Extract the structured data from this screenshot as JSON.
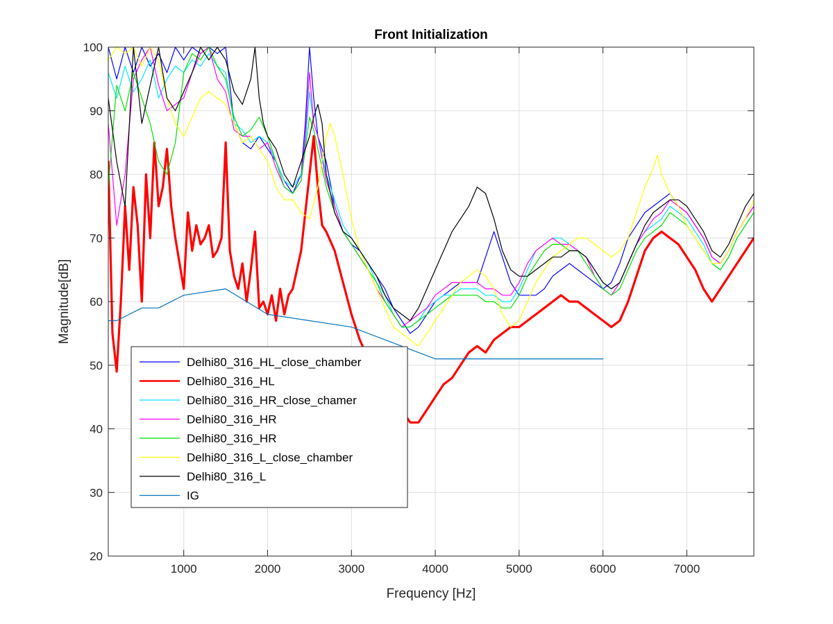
{
  "chart_data": {
    "type": "line",
    "title": "Front Initialization",
    "xlabel": "Frequency [Hz]",
    "ylabel": "Magnitude[dB]",
    "xlim": [
      100,
      7800
    ],
    "ylim": [
      20,
      100
    ],
    "xticks": [
      1000,
      2000,
      3000,
      4000,
      5000,
      6000,
      7000
    ],
    "yticks": [
      20,
      30,
      40,
      50,
      60,
      70,
      80,
      90,
      100
    ],
    "grid": true,
    "legend_position": "lower-left",
    "series": [
      {
        "name": "Delhi80_316_HL_close_chamber",
        "color": "#0000ff",
        "width": 1.2,
        "x": [
          100,
          200,
          300,
          400,
          500,
          600,
          700,
          800,
          900,
          1000,
          1100,
          1200,
          1300,
          1400,
          1500,
          1600,
          1700,
          1800,
          1900,
          2000,
          2100,
          2200,
          2300,
          2400,
          2450,
          2500,
          2550,
          2600,
          2700,
          2800,
          2900,
          3000,
          3100,
          3200,
          3300,
          3400,
          3500,
          3600,
          3700,
          3800,
          3900,
          4000,
          4100,
          4200,
          4300,
          4400,
          4500,
          4600,
          4700,
          4800,
          4900,
          5000,
          5100,
          5200,
          5300,
          5400,
          5500,
          5600,
          5700,
          5800,
          5900,
          6000,
          6100,
          6200,
          6300,
          6400,
          6500,
          6600,
          6700,
          6800,
          6900,
          7000,
          7100,
          7200,
          7300,
          7400,
          7500,
          7600,
          7700,
          7800
        ],
        "y": [
          100,
          95,
          100,
          96,
          100,
          97,
          99,
          96,
          100,
          98,
          100,
          99,
          100,
          99,
          100,
          88,
          85,
          84,
          86,
          84,
          82,
          79,
          77,
          80,
          88,
          100,
          92,
          86,
          82,
          75,
          71,
          69,
          68,
          66,
          64,
          62,
          59,
          57,
          55,
          56,
          58,
          60,
          61,
          62,
          63,
          63,
          63,
          67,
          71,
          67,
          63,
          61,
          61,
          61,
          62,
          64,
          65,
          66,
          65,
          64,
          63,
          62,
          63,
          66,
          70,
          72,
          74,
          75,
          76,
          77,
          75,
          74,
          72,
          70,
          67,
          66,
          68,
          71,
          73,
          75
        ]
      },
      {
        "name": "Delhi80_316_HL",
        "color": "#ff0000",
        "width": 3.2,
        "x": [
          100,
          150,
          200,
          250,
          300,
          350,
          400,
          450,
          500,
          550,
          600,
          650,
          700,
          750,
          800,
          850,
          900,
          950,
          1000,
          1050,
          1100,
          1150,
          1200,
          1250,
          1300,
          1350,
          1400,
          1450,
          1500,
          1550,
          1600,
          1650,
          1700,
          1750,
          1800,
          1850,
          1900,
          1950,
          2000,
          2050,
          2100,
          2150,
          2200,
          2250,
          2300,
          2400,
          2500,
          2550,
          2600,
          2650,
          2700,
          2800,
          2900,
          3000,
          3100,
          3200,
          3300,
          3400,
          3500,
          3600,
          3700,
          3800,
          3900,
          4000,
          4100,
          4200,
          4300,
          4400,
          4500,
          4600,
          4700,
          4800,
          4900,
          5000,
          5100,
          5200,
          5300,
          5400,
          5500,
          5600,
          5700,
          5800,
          5900,
          6000,
          6100,
          6200,
          6300,
          6400,
          6500,
          6600,
          6700,
          6800,
          6900,
          7000,
          7100,
          7200,
          7300,
          7400,
          7500,
          7600,
          7700,
          7800
        ],
        "y": [
          82,
          55,
          49,
          60,
          75,
          65,
          78,
          72,
          60,
          80,
          70,
          85,
          75,
          78,
          84,
          75,
          70,
          66,
          62,
          74,
          68,
          72,
          69,
          70,
          72,
          67,
          68,
          70,
          85,
          68,
          64,
          62,
          66,
          60,
          65,
          71,
          59,
          60,
          58,
          61,
          57,
          62,
          58,
          61,
          62,
          68,
          80,
          86,
          78,
          72,
          71,
          68,
          63,
          58,
          54,
          51,
          48,
          46,
          44,
          43,
          41,
          41,
          43,
          45,
          47,
          48,
          50,
          52,
          53,
          52,
          54,
          55,
          56,
          56,
          57,
          58,
          59,
          60,
          61,
          60,
          60,
          59,
          58,
          57,
          56,
          57,
          60,
          64,
          68,
          70,
          71,
          70,
          69,
          67,
          65,
          62,
          60,
          62,
          64,
          66,
          68,
          70
        ]
      },
      {
        "name": "Delhi80_316_HR_close_chamer",
        "color": "#00e5ff",
        "width": 1.2,
        "x": [
          100,
          200,
          300,
          400,
          500,
          600,
          700,
          800,
          900,
          1000,
          1100,
          1200,
          1300,
          1400,
          1500,
          1600,
          1700,
          1800,
          1900,
          2000,
          2100,
          2200,
          2300,
          2400,
          2450,
          2500,
          2550,
          2600,
          2700,
          2800,
          2900,
          3000,
          3100,
          3200,
          3300,
          3400,
          3500,
          3600,
          3700,
          3800,
          3900,
          4000,
          4100,
          4200,
          4300,
          4400,
          4500,
          4600,
          4700,
          4800,
          4900,
          5000,
          5100,
          5200,
          5300,
          5400,
          5500,
          5600,
          5700,
          5800,
          5900,
          6000,
          6100,
          6200,
          6300,
          6400,
          6500,
          6600,
          6700,
          6800,
          6900,
          7000,
          7100,
          7200,
          7300,
          7400,
          7500,
          7600,
          7700,
          7800
        ],
        "y": [
          96,
          92,
          97,
          93,
          95,
          98,
          92,
          95,
          97,
          96,
          98,
          97,
          99,
          97,
          96,
          88,
          87,
          85,
          86,
          85,
          82,
          79,
          78,
          80,
          85,
          93,
          88,
          86,
          80,
          76,
          72,
          70,
          68,
          66,
          63,
          61,
          58,
          56,
          56,
          57,
          59,
          60,
          61,
          61,
          62,
          62,
          62,
          61,
          61,
          60,
          60,
          62,
          65,
          68,
          69,
          70,
          70,
          69,
          68,
          67,
          65,
          63,
          62,
          63,
          66,
          69,
          71,
          72,
          73,
          75,
          74,
          73,
          71,
          69,
          66,
          65,
          67,
          70,
          72,
          74
        ]
      },
      {
        "name": "Delhi80_316_HR",
        "color": "#ff00ff",
        "width": 1.2,
        "x": [
          100,
          200,
          300,
          400,
          500,
          600,
          700,
          800,
          900,
          1000,
          1100,
          1200,
          1300,
          1400,
          1500,
          1600,
          1700,
          1800,
          1900,
          2000,
          2100,
          2200,
          2300,
          2400,
          2450,
          2500,
          2550,
          2600,
          2700,
          2800,
          2900,
          3000,
          3100,
          3200,
          3300,
          3400,
          3500,
          3600,
          3700,
          3800,
          3900,
          4000,
          4100,
          4200,
          4300,
          4400,
          4500,
          4600,
          4700,
          4800,
          4900,
          5000,
          5100,
          5200,
          5300,
          5400,
          5500,
          5600,
          5700,
          5800,
          5900,
          6000,
          6100,
          6200,
          6300,
          6400,
          6500,
          6600,
          6700,
          6800,
          6900,
          7000,
          7100,
          7200,
          7300,
          7400,
          7500,
          7600,
          7700,
          7800
        ],
        "y": [
          88,
          72,
          80,
          95,
          98,
          100,
          94,
          90,
          91,
          92,
          96,
          99,
          100,
          95,
          93,
          87,
          86,
          86,
          84,
          85,
          81,
          78,
          77,
          79,
          86,
          96,
          88,
          86,
          79,
          75,
          71,
          69,
          67,
          65,
          62,
          60,
          58,
          56,
          57,
          58,
          59,
          61,
          62,
          63,
          63,
          63,
          63,
          62,
          62,
          61,
          61,
          63,
          66,
          68,
          69,
          70,
          69,
          69,
          68,
          67,
          64,
          62,
          61,
          63,
          66,
          69,
          71,
          73,
          74,
          76,
          75,
          74,
          72,
          70,
          67,
          66,
          68,
          71,
          73,
          75
        ]
      },
      {
        "name": "Delhi80_316_HR",
        "color": "#00e000",
        "width": 1.2,
        "x": [
          100,
          200,
          300,
          400,
          500,
          600,
          700,
          800,
          900,
          1000,
          1100,
          1200,
          1300,
          1400,
          1500,
          1600,
          1700,
          1800,
          1900,
          2000,
          2100,
          2200,
          2300,
          2400,
          2450,
          2500,
          2550,
          2600,
          2700,
          2800,
          2900,
          3000,
          3100,
          3200,
          3300,
          3400,
          3500,
          3600,
          3700,
          3800,
          3900,
          4000,
          4100,
          4200,
          4300,
          4400,
          4500,
          4600,
          4700,
          4800,
          4900,
          5000,
          5100,
          5200,
          5300,
          5400,
          5500,
          5600,
          5700,
          5800,
          5900,
          6000,
          6100,
          6200,
          6300,
          6400,
          6500,
          6600,
          6700,
          6800,
          6900,
          7000,
          7100,
          7200,
          7300,
          7400,
          7500,
          7600,
          7700,
          7800
        ],
        "y": [
          78,
          94,
          90,
          96,
          92,
          88,
          82,
          80,
          85,
          96,
          99,
          98,
          100,
          97,
          95,
          89,
          86,
          87,
          89,
          86,
          82,
          78,
          77,
          79,
          84,
          89,
          87,
          84,
          78,
          74,
          71,
          69,
          67,
          65,
          63,
          60,
          58,
          56,
          56,
          57,
          58,
          59,
          60,
          61,
          61,
          61,
          61,
          60,
          60,
          59,
          59,
          61,
          64,
          66,
          68,
          69,
          69,
          68,
          68,
          66,
          64,
          62,
          61,
          62,
          65,
          68,
          70,
          71,
          72,
          74,
          73,
          72,
          70,
          68,
          66,
          65,
          67,
          70,
          72,
          74
        ]
      },
      {
        "name": "Delhi80_316_L_close_chamber",
        "color": "#ffff00",
        "width": 1.2,
        "x": [
          100,
          200,
          300,
          400,
          500,
          600,
          700,
          800,
          900,
          1000,
          1100,
          1200,
          1300,
          1400,
          1500,
          1600,
          1700,
          1800,
          1900,
          2000,
          2100,
          2200,
          2300,
          2400,
          2500,
          2600,
          2700,
          2750,
          2800,
          2900,
          3000,
          3100,
          3200,
          3300,
          3400,
          3500,
          3600,
          3700,
          3800,
          3900,
          4000,
          4100,
          4200,
          4300,
          4400,
          4500,
          4600,
          4700,
          4800,
          4900,
          5000,
          5100,
          5200,
          5300,
          5400,
          5500,
          5600,
          5700,
          5800,
          5900,
          6000,
          6100,
          6200,
          6300,
          6400,
          6500,
          6600,
          6650,
          6700,
          6800,
          6900,
          7000,
          7100,
          7200,
          7300,
          7400,
          7500,
          7600,
          7700,
          7800
        ],
        "y": [
          98,
          100,
          99,
          100,
          97,
          100,
          98,
          92,
          88,
          86,
          89,
          92,
          93,
          92,
          91,
          88,
          85,
          86,
          84,
          82,
          78,
          76,
          76,
          74,
          73,
          78,
          86,
          88,
          86,
          80,
          73,
          68,
          65,
          62,
          59,
          56,
          55,
          54,
          53,
          55,
          57,
          59,
          61,
          63,
          64,
          65,
          64,
          62,
          58,
          56,
          57,
          60,
          63,
          65,
          67,
          68,
          69,
          70,
          70,
          69,
          68,
          67,
          68,
          70,
          74,
          78,
          81,
          83,
          80,
          77,
          75,
          72,
          70,
          68,
          66,
          66,
          68,
          71,
          73,
          76
        ]
      },
      {
        "name": "Delhi80_316_L",
        "color": "#000000",
        "width": 1.2,
        "x": [
          100,
          200,
          300,
          400,
          500,
          600,
          700,
          800,
          900,
          1000,
          1100,
          1200,
          1300,
          1400,
          1500,
          1600,
          1700,
          1800,
          1850,
          1900,
          1950,
          2000,
          2100,
          2200,
          2300,
          2400,
          2500,
          2550,
          2600,
          2650,
          2700,
          2800,
          2900,
          3000,
          3100,
          3200,
          3300,
          3400,
          3500,
          3600,
          3700,
          3800,
          3900,
          4000,
          4100,
          4200,
          4300,
          4400,
          4500,
          4600,
          4700,
          4800,
          4900,
          5000,
          5100,
          5200,
          5300,
          5400,
          5500,
          5600,
          5700,
          5800,
          5900,
          6000,
          6100,
          6200,
          6300,
          6400,
          6500,
          6600,
          6700,
          6800,
          6900,
          7000,
          7100,
          7200,
          7300,
          7400,
          7500,
          7600,
          7700,
          7800
        ],
        "y": [
          92,
          82,
          75,
          100,
          88,
          94,
          100,
          92,
          90,
          93,
          96,
          100,
          98,
          100,
          98,
          93,
          91,
          95,
          100,
          92,
          88,
          86,
          84,
          80,
          78,
          82,
          86,
          89,
          91,
          88,
          80,
          74,
          71,
          70,
          68,
          66,
          64,
          61,
          59,
          58,
          57,
          59,
          62,
          65,
          68,
          71,
          73,
          75,
          78,
          77,
          73,
          68,
          65,
          64,
          64,
          65,
          66,
          67,
          67,
          68,
          68,
          67,
          65,
          63,
          62,
          63,
          66,
          69,
          72,
          74,
          75,
          76,
          76,
          75,
          73,
          71,
          68,
          67,
          69,
          72,
          75,
          77
        ]
      },
      {
        "name": "IG",
        "color": "#0072bd",
        "width": 1.2,
        "x": [
          100,
          200,
          500,
          700,
          1000,
          1500,
          2000,
          3000,
          4000,
          5000,
          6000
        ],
        "y": [
          57,
          57,
          59,
          59,
          61,
          62,
          58,
          56,
          51,
          51,
          51
        ]
      }
    ]
  }
}
